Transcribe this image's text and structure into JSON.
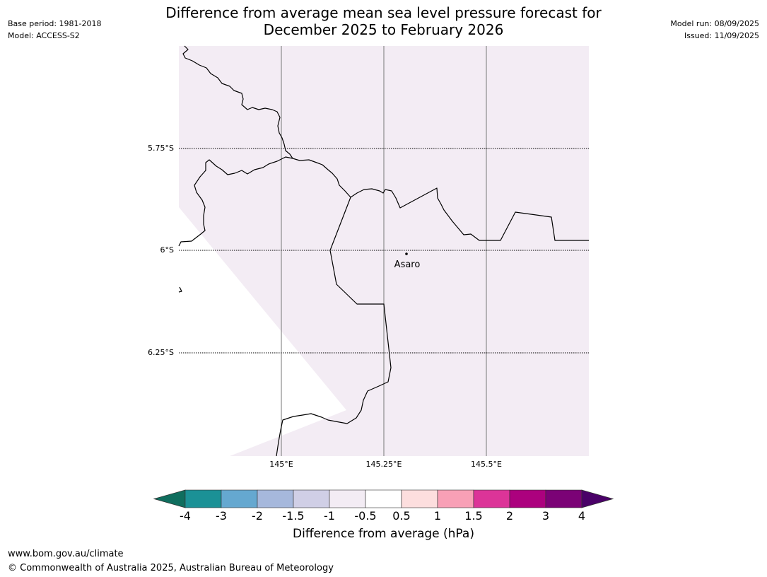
{
  "header": {
    "base_period": "Base period: 1981-2018",
    "model": "Model: ACCESS-S2",
    "model_run": "Model run: 08/09/2025",
    "issued": "Issued: 11/09/2025",
    "title_line1": "Difference from average mean sea level pressure forecast for",
    "title_line2": "December 2025 to February 2026"
  },
  "map": {
    "fill_color": "#f3ecf4",
    "land_outline_color": "#000000",
    "latitude_labels": [
      "5.75°S",
      "6°S",
      "6.25°S"
    ],
    "longitude_labels": [
      "145°E",
      "145.25°E",
      "145.5°E"
    ],
    "places": [
      {
        "name": "Asaro"
      }
    ]
  },
  "colorbar": {
    "title": "Difference from average (hPa)",
    "ticks": [
      "-4",
      "-3",
      "-2",
      "-1.5",
      "-1",
      "-0.5",
      "0.5",
      "1",
      "1.5",
      "2",
      "3",
      "4"
    ],
    "under_color": "#0f6e5e",
    "colors": [
      "#1b9196",
      "#65a8d0",
      "#a6b8dc",
      "#d0cfe6",
      "#f3ecf4",
      "#ffffff",
      "#fddede",
      "#f8a0b6",
      "#dc3498",
      "#ac017e",
      "#7b0276"
    ],
    "over_color": "#4a0168"
  },
  "footer": {
    "url": "www.bom.gov.au/climate",
    "copyright": "© Commonwealth of Australia 2025, Australian Bureau of Meteorology"
  }
}
